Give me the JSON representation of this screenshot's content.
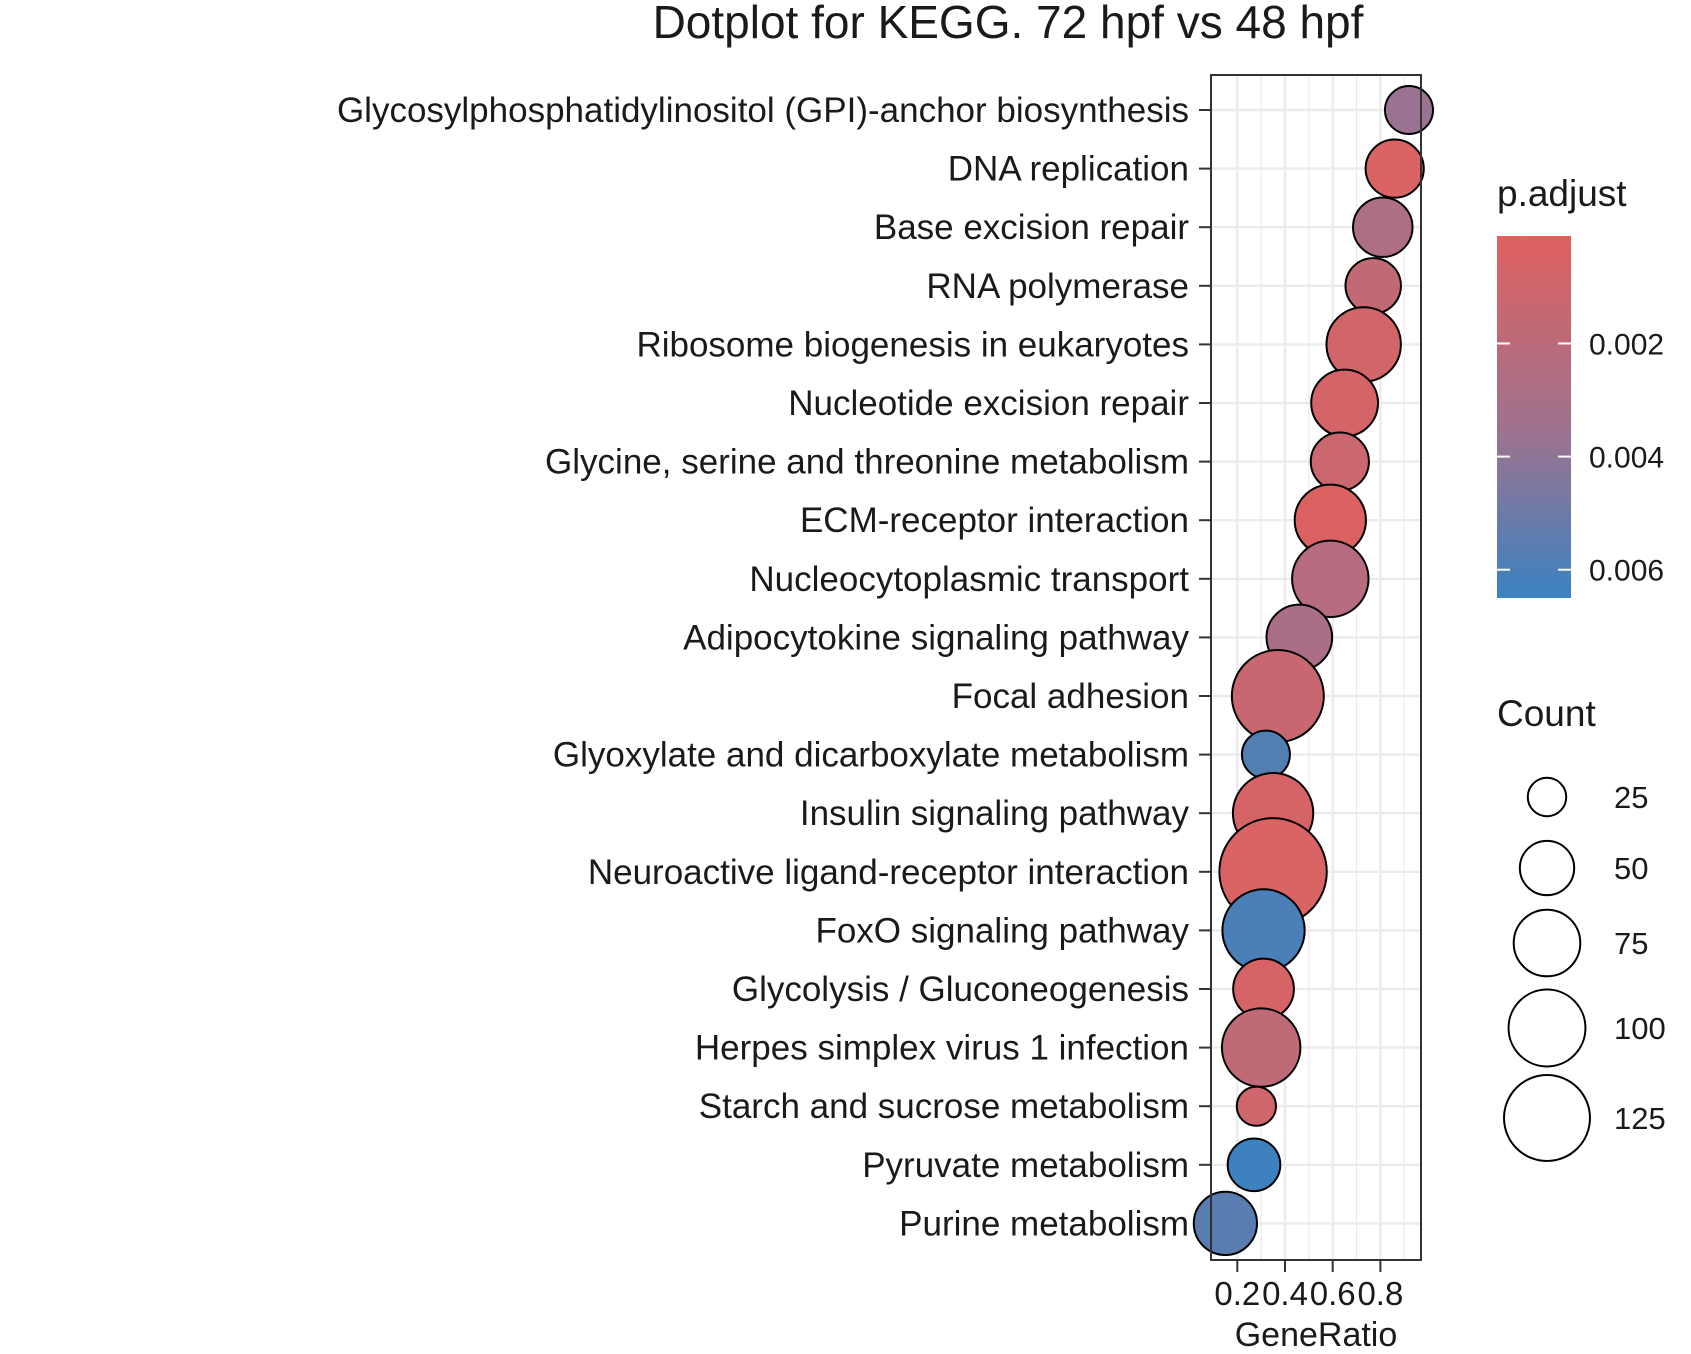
{
  "chart_data": {
    "type": "scatter",
    "title": "Dotplot for KEGG. 72 hpf vs 48 hpf",
    "xlabel": "GeneRatio",
    "ylabel": "",
    "xlim": [
      0.14,
      0.92
    ],
    "x_ticks": [
      {
        "value": 0.2,
        "label": "0.2"
      },
      {
        "value": 0.4,
        "label": "0.4"
      },
      {
        "value": 0.6,
        "label": "0.6"
      },
      {
        "value": 0.8,
        "label": "0.8"
      }
    ],
    "grid": true,
    "color_legend": {
      "title": "p.adjust",
      "range": [
        0.0001,
        0.0065
      ],
      "low_color": "#E0615F",
      "mid_color": "#9C7390",
      "high_color": "#3A82C0",
      "ticks": [
        {
          "value": 0.002,
          "label": "0.002"
        },
        {
          "value": 0.004,
          "label": "0.004"
        },
        {
          "value": 0.006,
          "label": "0.006"
        }
      ]
    },
    "size_legend": {
      "title": "Count",
      "entries": [
        {
          "value": 25,
          "label": "25"
        },
        {
          "value": 50,
          "label": "50"
        },
        {
          "value": 75,
          "label": "75"
        },
        {
          "value": 100,
          "label": "100"
        },
        {
          "value": 125,
          "label": "125"
        }
      ]
    },
    "legend_position": "right",
    "points": [
      {
        "term": "Glycosylphosphatidylinositol (GPI)-anchor biosynthesis",
        "x": 0.92,
        "p_adjust": 0.0037,
        "count": 15
      },
      {
        "term": "DNA replication",
        "x": 0.86,
        "p_adjust": 0.0004,
        "count": 22
      },
      {
        "term": "Base excision repair",
        "x": 0.81,
        "p_adjust": 0.0027,
        "count": 23
      },
      {
        "term": "RNA polymerase",
        "x": 0.77,
        "p_adjust": 0.0017,
        "count": 20
      },
      {
        "term": "Ribosome biogenesis in eukaryotes",
        "x": 0.73,
        "p_adjust": 0.0008,
        "count": 36
      },
      {
        "term": "Nucleotide excision repair",
        "x": 0.65,
        "p_adjust": 0.0007,
        "count": 29
      },
      {
        "term": "Glycine, serine and threonine metabolism",
        "x": 0.63,
        "p_adjust": 0.0012,
        "count": 22
      },
      {
        "term": "ECM-receptor interaction",
        "x": 0.59,
        "p_adjust": 0.0003,
        "count": 33
      },
      {
        "term": "Nucleocytoplasmic transport",
        "x": 0.59,
        "p_adjust": 0.0023,
        "count": 38
      },
      {
        "term": "Adipocytokine signaling pathway",
        "x": 0.46,
        "p_adjust": 0.0029,
        "count": 28
      },
      {
        "term": "Focal adhesion",
        "x": 0.37,
        "p_adjust": 0.0013,
        "count": 55
      },
      {
        "term": "Glyoxylate and dicarboxylate metabolism",
        "x": 0.32,
        "p_adjust": 0.0058,
        "count": 15
      },
      {
        "term": "Insulin signaling pathway",
        "x": 0.35,
        "p_adjust": 0.0006,
        "count": 42
      },
      {
        "term": "Neuroactive ligand-receptor interaction",
        "x": 0.35,
        "p_adjust": 0.0004,
        "count": 75
      },
      {
        "term": "FoxO signaling pathway",
        "x": 0.31,
        "p_adjust": 0.006,
        "count": 44
      },
      {
        "term": "Glycolysis / Gluconeogenesis",
        "x": 0.31,
        "p_adjust": 0.0006,
        "count": 24
      },
      {
        "term": "Herpes simplex virus 1 infection",
        "x": 0.3,
        "p_adjust": 0.0018,
        "count": 40
      },
      {
        "term": "Starch and sucrose metabolism",
        "x": 0.28,
        "p_adjust": 0.001,
        "count": 10
      },
      {
        "term": "Pyruvate metabolism",
        "x": 0.27,
        "p_adjust": 0.0064,
        "count": 18
      },
      {
        "term": "Purine metabolism",
        "x": 0.15,
        "p_adjust": 0.0056,
        "count": 26
      }
    ]
  }
}
